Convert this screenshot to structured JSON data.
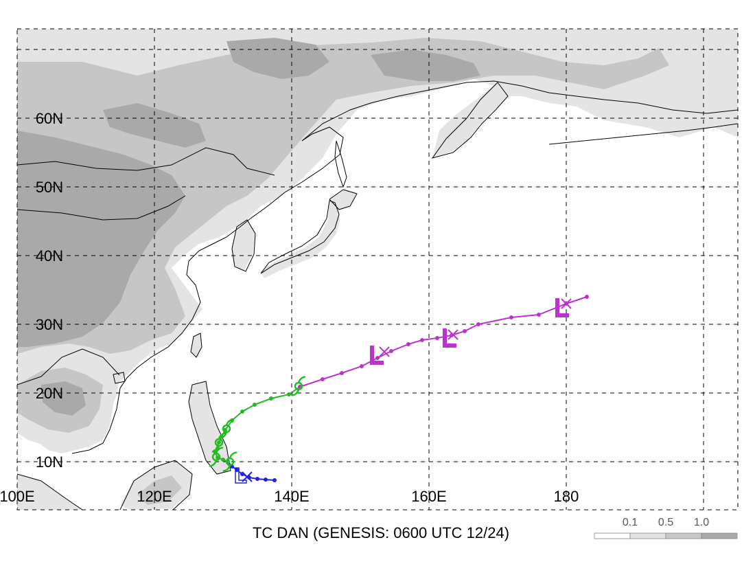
{
  "map": {
    "caption": "TC DAN (GENESIS: 0600 UTC 12/24)",
    "lon_range": [
      100,
      205
    ],
    "lat_range": [
      3,
      73
    ],
    "lon_labels": [
      {
        "lon": 100,
        "text": "100E"
      },
      {
        "lon": 120,
        "text": "120E"
      },
      {
        "lon": 140,
        "text": "140E"
      },
      {
        "lon": 160,
        "text": "160E"
      },
      {
        "lon": 180,
        "text": "180"
      }
    ],
    "lat_labels": [
      {
        "lat": 10,
        "text": "10N"
      },
      {
        "lat": 20,
        "text": "20N"
      },
      {
        "lat": 30,
        "text": "30N"
      },
      {
        "lat": 40,
        "text": "40N"
      },
      {
        "lat": 50,
        "text": "50N"
      },
      {
        "lat": 60,
        "text": "60N"
      }
    ],
    "grid_lons": [
      100,
      120,
      140,
      160,
      180,
      200
    ],
    "grid_lats": [
      10,
      20,
      30,
      40,
      50,
      60,
      70
    ],
    "legend": {
      "ticks": [
        "0.1",
        "0.5",
        "1.0"
      ],
      "colors": [
        "#ffffff",
        "#e4e4e4",
        "#c8c8c8",
        "#a8a8a8"
      ]
    },
    "colors": {
      "land_light": "#e4e4e4",
      "land_mid": "#c6c6c6",
      "land_dark": "#a9a9a9",
      "coast": "#000000",
      "track_early": "#2222dd",
      "track_tc": "#22bb22",
      "track_ex": "#bb33cc"
    },
    "tracks": {
      "early": [
        [
          137.5,
          7.3
        ],
        [
          136.2,
          7.4
        ],
        [
          135.0,
          7.5
        ],
        [
          133.8,
          7.7
        ],
        [
          132.8,
          8.2
        ],
        [
          132.0,
          8.8
        ],
        [
          131.3,
          9.3
        ],
        [
          130.7,
          10.0
        ]
      ],
      "tc": [
        [
          130.7,
          10.0
        ],
        [
          130.0,
          10.3
        ],
        [
          129.2,
          10.6
        ],
        [
          128.8,
          11.5
        ],
        [
          129.4,
          12.8
        ],
        [
          130.3,
          14.6
        ],
        [
          131.3,
          16.0
        ],
        [
          132.8,
          17.3
        ],
        [
          134.6,
          18.3
        ],
        [
          137.0,
          19.2
        ],
        [
          139.6,
          19.8
        ],
        [
          141.2,
          20.9
        ]
      ],
      "ex": [
        [
          141.2,
          20.9
        ],
        [
          144.5,
          22.0
        ],
        [
          147.3,
          22.9
        ],
        [
          150.2,
          23.9
        ],
        [
          152.5,
          25.1
        ],
        [
          154.5,
          26.1
        ],
        [
          157.0,
          27.1
        ],
        [
          159.0,
          27.7
        ],
        [
          161.2,
          28.0
        ],
        [
          163.3,
          28.4
        ],
        [
          165.2,
          29.0
        ],
        [
          167.2,
          30.0
        ],
        [
          172.0,
          31.0
        ],
        [
          176.0,
          31.4
        ],
        [
          180.0,
          33.0
        ],
        [
          183.0,
          34.0
        ]
      ]
    },
    "cross_markers": [
      {
        "lon": 133.5,
        "lat": 7.8,
        "track": "early"
      },
      {
        "lon": 153.5,
        "lat": 26.0,
        "track": "ex"
      },
      {
        "lon": 163.5,
        "lat": 28.5,
        "track": "ex"
      },
      {
        "lon": 180.0,
        "lat": 33.0,
        "track": "ex"
      }
    ],
    "low_markers": [
      {
        "lon": 132.8,
        "lat": 7.7,
        "track": "early",
        "hollow": true
      },
      {
        "lon": 152.4,
        "lat": 25.5,
        "track": "ex",
        "hollow": false
      },
      {
        "lon": 163.0,
        "lat": 28.0,
        "track": "ex",
        "hollow": false
      },
      {
        "lon": 179.4,
        "lat": 32.4,
        "track": "ex",
        "hollow": false
      }
    ],
    "cyclone_markers": [
      {
        "lon": 131.0,
        "lat": 10.0
      },
      {
        "lon": 129.0,
        "lat": 10.7
      },
      {
        "lon": 129.4,
        "lat": 12.8
      },
      {
        "lon": 130.5,
        "lat": 14.8
      },
      {
        "lon": 141.0,
        "lat": 21.0
      }
    ]
  }
}
